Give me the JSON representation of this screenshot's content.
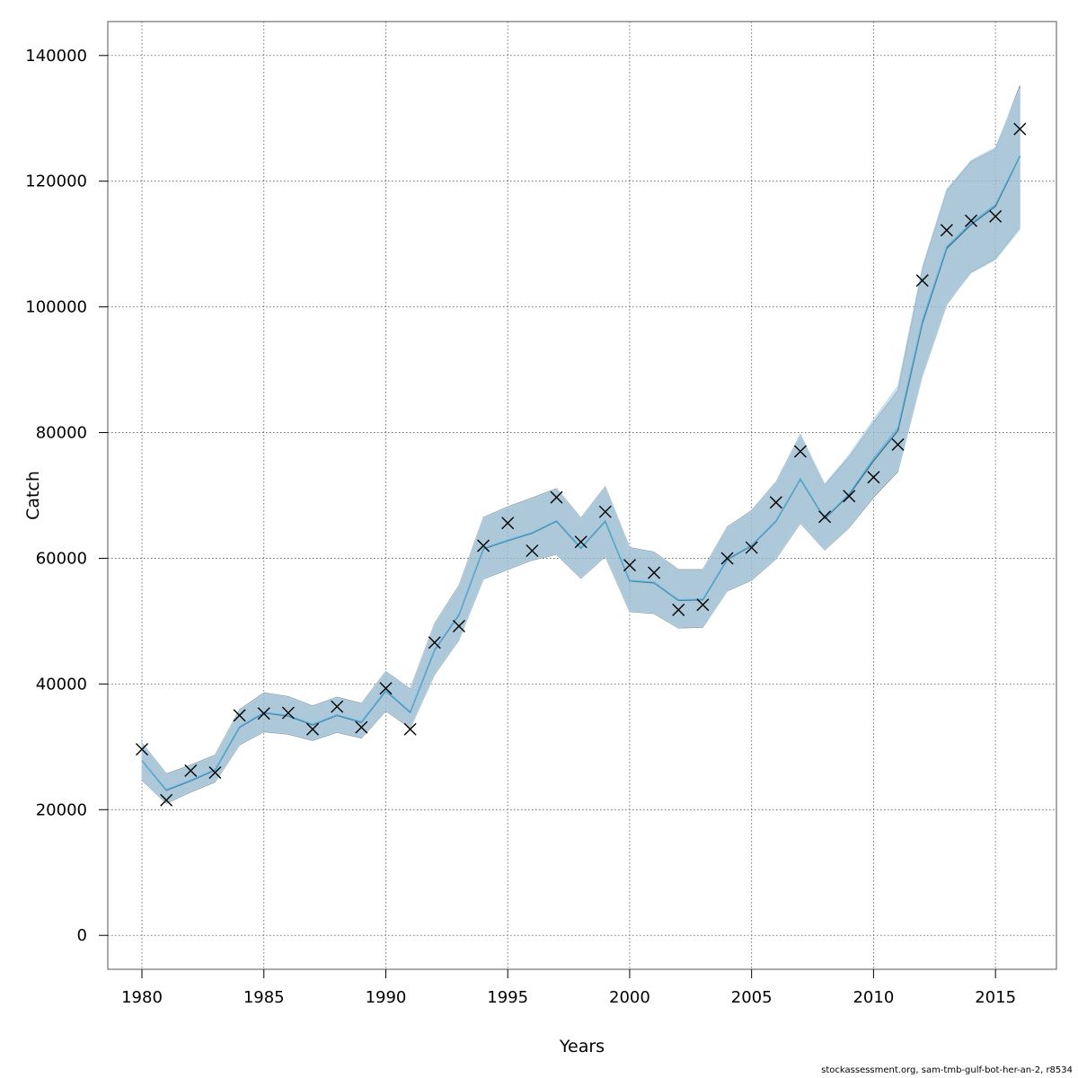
{
  "chart_data": {
    "type": "line",
    "title": "",
    "xlabel": "Years",
    "ylabel": "Catch",
    "xlim": [
      1978.6,
      2017.5
    ],
    "ylim": [
      -5400,
      145400
    ],
    "x_ticks": [
      "1980",
      "1985",
      "1990",
      "1995",
      "2000",
      "2005",
      "2010",
      "2015"
    ],
    "y_ticks": [
      "0",
      "20000",
      "40000",
      "60000",
      "80000",
      "100000",
      "120000",
      "140000"
    ],
    "grid": true,
    "legend": "none",
    "colors": {
      "band_dark": "#6f8fa0",
      "band_light": "#a9cde6",
      "line_dark": "#3f7487",
      "line_light": "#5ab4e6",
      "observed": "#000000"
    },
    "x": [
      1980,
      1981,
      1982,
      1983,
      1984,
      1985,
      1986,
      1987,
      1988,
      1989,
      1990,
      1991,
      1992,
      1993,
      1994,
      1995,
      1996,
      1997,
      1998,
      1999,
      2000,
      2001,
      2002,
      2003,
      2004,
      2005,
      2006,
      2007,
      2008,
      2009,
      2010,
      2011,
      2012,
      2013,
      2014,
      2015,
      2016
    ],
    "series": [
      {
        "kind": "estimate_dark",
        "values": [
          27800,
          23100,
          24600,
          26300,
          33100,
          35400,
          34900,
          33500,
          35000,
          33900,
          38900,
          35500,
          45400,
          51000,
          61500,
          62800,
          64000,
          65900,
          61600,
          65900,
          56400,
          56100,
          53300,
          53400,
          59800,
          62000,
          65900,
          72600,
          66300,
          70100,
          75500,
          80300,
          97400,
          109300,
          113100,
          116000,
          124000
        ],
        "lower": [
          24700,
          21000,
          22800,
          24400,
          30300,
          32400,
          32000,
          31000,
          32300,
          31400,
          35700,
          33000,
          41500,
          47000,
          56700,
          58200,
          59700,
          60600,
          56800,
          60300,
          51500,
          51200,
          48900,
          49000,
          54800,
          56500,
          59900,
          65600,
          61300,
          64900,
          69700,
          73800,
          89000,
          100400,
          105500,
          107700,
          112700
        ],
        "upper": [
          30600,
          25700,
          27100,
          28700,
          35900,
          38600,
          38000,
          36500,
          37900,
          36900,
          42000,
          39200,
          49600,
          55700,
          66500,
          68200,
          69600,
          71100,
          66400,
          71400,
          61700,
          61000,
          58200,
          58200,
          65000,
          67600,
          72100,
          79700,
          71700,
          76100,
          81600,
          86700,
          106000,
          118500,
          123100,
          125100,
          135200
        ]
      },
      {
        "kind": "estimate_light",
        "values": [
          27800,
          23200,
          24700,
          26400,
          33200,
          35500,
          35000,
          33600,
          35100,
          34000,
          39000,
          35600,
          45500,
          51100,
          61600,
          62900,
          64100,
          66000,
          61700,
          66000,
          56500,
          56200,
          53400,
          53500,
          59900,
          62100,
          66000,
          72700,
          66400,
          70300,
          75900,
          80800,
          97800,
          109600,
          113400,
          116300,
          124100
        ],
        "lower": [
          24800,
          21100,
          22900,
          24500,
          30400,
          32500,
          32100,
          31100,
          32400,
          31500,
          35800,
          33100,
          41600,
          47100,
          56800,
          58300,
          59800,
          60700,
          56900,
          60400,
          51600,
          51300,
          49000,
          49100,
          54900,
          56600,
          60000,
          65700,
          61400,
          65000,
          69900,
          74000,
          89100,
          100500,
          105400,
          107500,
          112300
        ],
        "upper": [
          30500,
          25600,
          27000,
          28600,
          35800,
          38500,
          37900,
          36400,
          37800,
          36800,
          41900,
          39100,
          49500,
          55600,
          66400,
          68100,
          69500,
          71000,
          66300,
          71300,
          61600,
          60900,
          58100,
          58100,
          64900,
          67500,
          72000,
          79600,
          71800,
          76500,
          82100,
          87400,
          106300,
          118700,
          123300,
          125400,
          134800
        ]
      },
      {
        "kind": "observed",
        "values": [
          29600,
          21500,
          26200,
          25900,
          35000,
          35300,
          35400,
          32800,
          36400,
          33100,
          39300,
          32800,
          46600,
          49200,
          62000,
          65600,
          61200,
          69700,
          62600,
          67400,
          58900,
          57700,
          51800,
          52600,
          60000,
          61700,
          68900,
          77000,
          66600,
          69900,
          72900,
          78100,
          104200,
          112200,
          113700,
          114400,
          128300
        ]
      }
    ]
  },
  "footer": {
    "source": "stockassessment.org, sam-tmb-gulf-bot-her-an-2, r8534"
  }
}
